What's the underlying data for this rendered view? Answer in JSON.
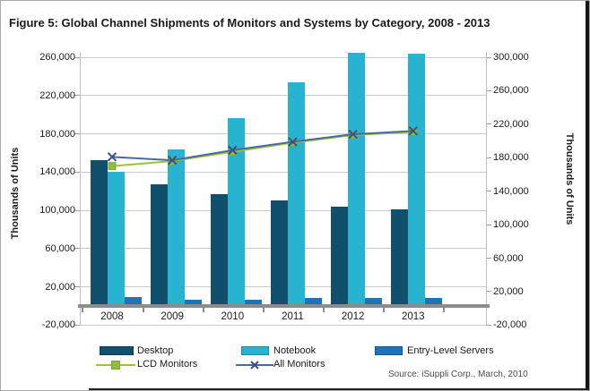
{
  "title": "Figure 5: Global Channel Shipments of Monitors and Systems by Category, 2008 - 2013",
  "source": "Source: iSuppli Corp., March, 2010",
  "chart_data": {
    "type": "bar",
    "subtype": "combo-bar-line-dual-axis",
    "categories": [
      "2008",
      "2009",
      "2010",
      "2011",
      "2012",
      "2013"
    ],
    "left_axis": {
      "label": "Thousands of Units",
      "ticks": [
        -20000,
        20000,
        60000,
        100000,
        140000,
        180000,
        220000,
        260000
      ],
      "min": -20000,
      "max": 260000,
      "grid": true
    },
    "right_axis": {
      "label": "Thousands of Units",
      "ticks": [
        -20000,
        20000,
        60000,
        100000,
        140000,
        180000,
        220000,
        260000,
        300000
      ],
      "min": -20000,
      "max": 300000
    },
    "series": [
      {
        "name": "Desktop",
        "type": "bar",
        "axis": "left",
        "color": "#11506d",
        "values": [
          152000,
          127000,
          117000,
          110000,
          104000,
          101000
        ]
      },
      {
        "name": "Notebook",
        "type": "bar",
        "axis": "left",
        "color": "#28b4d0",
        "values": [
          140000,
          164000,
          196000,
          234000,
          265000,
          264000
        ]
      },
      {
        "name": "Entry-Level Servers",
        "type": "bar",
        "axis": "left",
        "color": "#1e74b8",
        "values": [
          9000,
          7000,
          7000,
          8000,
          8000,
          8000
        ]
      },
      {
        "name": "LCD Monitors",
        "type": "line",
        "axis": "right",
        "color": "#9cc13c",
        "marker": "square",
        "marker_color": "#8fbe3e",
        "values": [
          170000,
          176000,
          187000,
          198000,
          207000,
          211000
        ]
      },
      {
        "name": "All Monitors",
        "type": "line",
        "axis": "right",
        "color": "#4a6a9f",
        "marker": "x",
        "marker_color": "#32508f",
        "values": [
          181000,
          177000,
          189000,
          199000,
          208000,
          212000
        ]
      }
    ],
    "legend_position": "bottom",
    "colors": {
      "gridline": "#c9c9c9",
      "baseline": "#8c8c8c",
      "axis_line": "#bfbfbf",
      "text": "#1a1a1a"
    }
  }
}
